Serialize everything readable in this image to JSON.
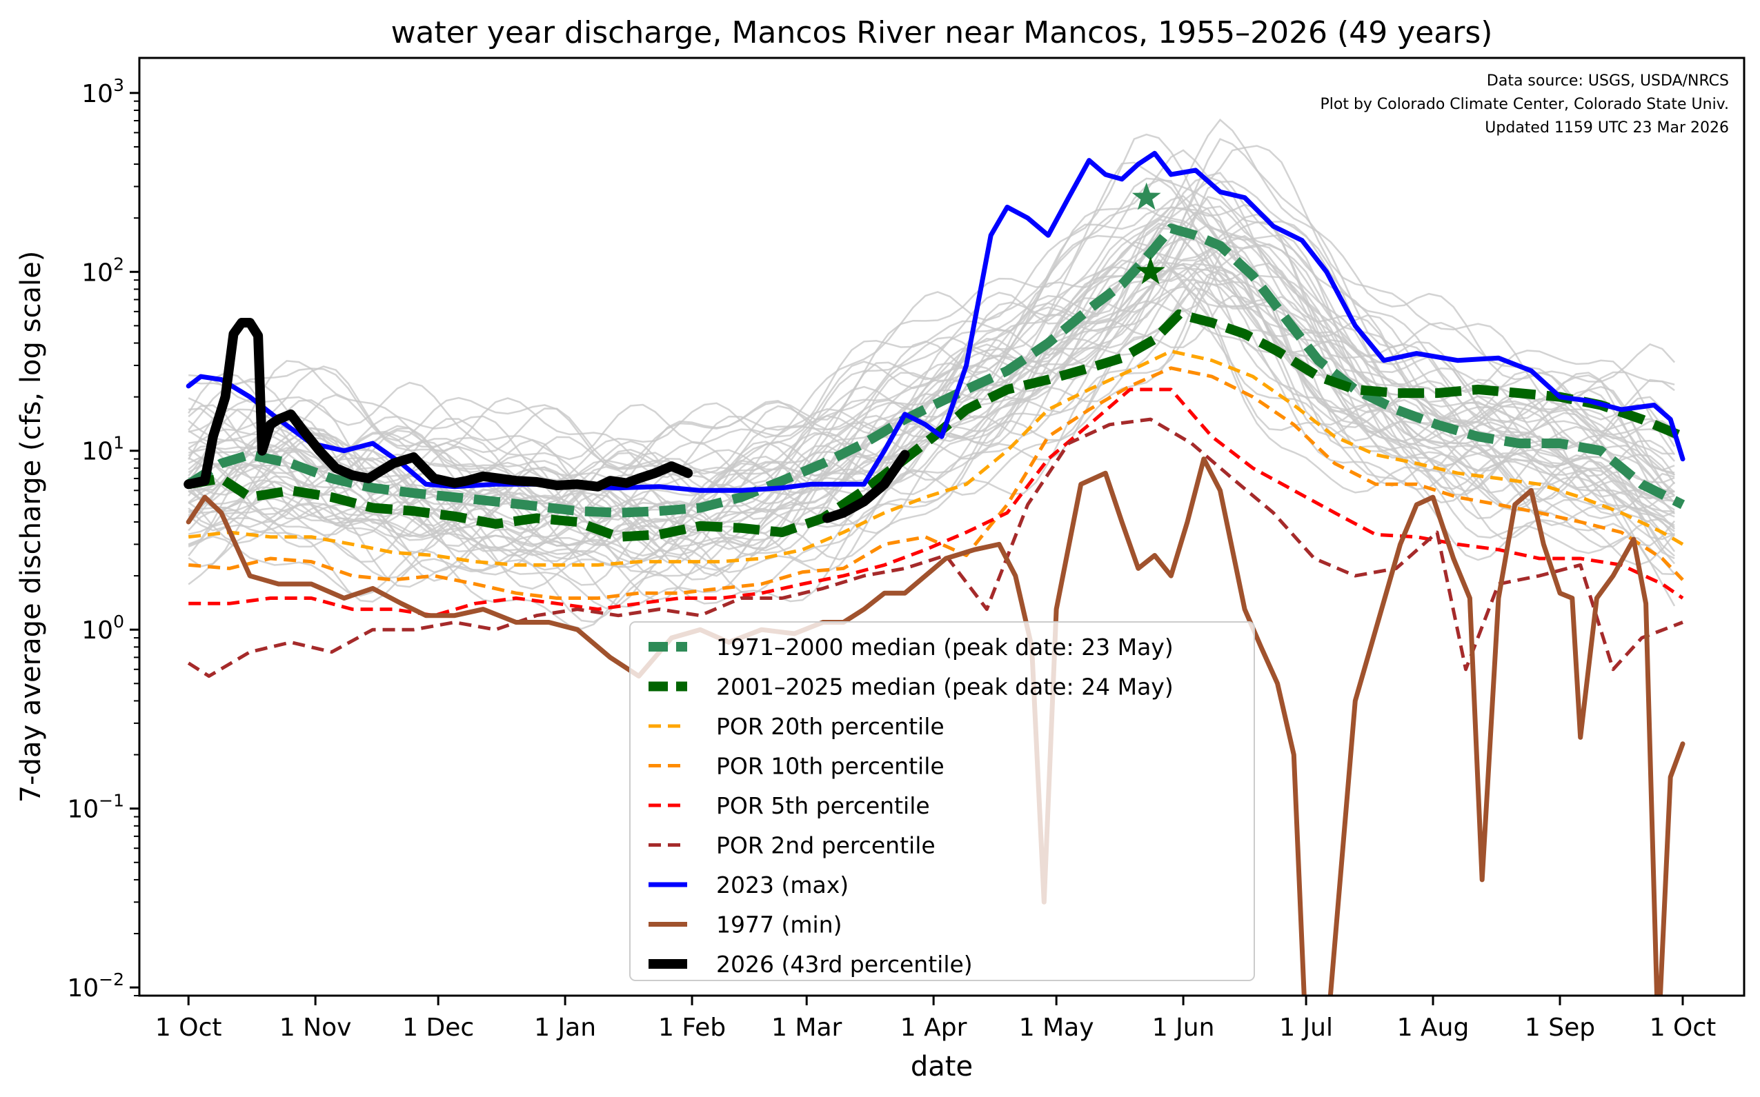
{
  "chart_data": {
    "type": "line",
    "title": "water year discharge, Mancos River near Mancos, 1955–2026 (49 years)",
    "xlabel": "date",
    "ylabel": "7-day average discharge (cfs, log scale)",
    "yscale": "log",
    "ylim": [
      0.009,
      1570
    ],
    "xlim_days": [
      -12,
      380
    ],
    "grid": false,
    "legend_position": "lower-center",
    "annotation": [
      "Data source: USGS, USDA/NRCS",
      "Plot by Colorado Climate Center, Colorado State Univ.",
      "Updated 1159 UTC 23 Mar 2026"
    ],
    "x_ticks": [
      {
        "day": 0,
        "label": "1 Oct"
      },
      {
        "day": 31,
        "label": "1 Nov"
      },
      {
        "day": 61,
        "label": "1 Dec"
      },
      {
        "day": 92,
        "label": "1 Jan"
      },
      {
        "day": 123,
        "label": "1 Feb"
      },
      {
        "day": 151,
        "label": "1 Mar"
      },
      {
        "day": 182,
        "label": "1 Apr"
      },
      {
        "day": 212,
        "label": "1 May"
      },
      {
        "day": 243,
        "label": "1 Jun"
      },
      {
        "day": 273,
        "label": "1 Jul"
      },
      {
        "day": 304,
        "label": "1 Aug"
      },
      {
        "day": 335,
        "label": "1 Sep"
      },
      {
        "day": 365,
        "label": "1 Oct"
      }
    ],
    "y_ticks": [
      {
        "value": 1000,
        "base": "10",
        "exp": "3"
      },
      {
        "value": 100,
        "base": "10",
        "exp": "2"
      },
      {
        "value": 10,
        "base": "10",
        "exp": "1"
      },
      {
        "value": 1,
        "base": "10",
        "exp": "0"
      },
      {
        "value": 0.1,
        "base": "10",
        "exp": "−1"
      },
      {
        "value": 0.01,
        "base": "10",
        "exp": "−2"
      }
    ],
    "series": [
      {
        "name": "1971–2000 median (peak date: 23 May)",
        "color": "#2e8b57",
        "style": "dashed-thick",
        "x": [
          0,
          8,
          15,
          25,
          35,
          45,
          55,
          65,
          75,
          85,
          95,
          105,
          115,
          125,
          135,
          145,
          155,
          165,
          175,
          182,
          190,
          200,
          210,
          220,
          228,
          234,
          240,
          246,
          252,
          260,
          268,
          276,
          285,
          295,
          305,
          315,
          325,
          335,
          345,
          355,
          365
        ],
        "values": [
          6.5,
          8.5,
          9.5,
          8.5,
          7.0,
          6.2,
          5.8,
          5.5,
          5.2,
          4.9,
          4.6,
          4.5,
          4.6,
          4.8,
          5.5,
          6.8,
          8.5,
          11,
          15,
          18,
          22,
          28,
          40,
          62,
          85,
          120,
          175,
          160,
          140,
          95,
          55,
          32,
          22,
          17,
          14,
          12,
          11,
          11,
          10,
          6.5,
          5.0
        ]
      },
      {
        "name": "2001–2025 median (peak date: 24 May)",
        "color": "#006400",
        "style": "dashed-thick",
        "x": [
          0,
          8,
          15,
          25,
          35,
          45,
          55,
          65,
          75,
          85,
          95,
          105,
          115,
          125,
          135,
          145,
          155,
          165,
          175,
          182,
          190,
          200,
          210,
          220,
          228,
          236,
          242,
          250,
          258,
          266,
          276,
          285,
          295,
          305,
          315,
          325,
          335,
          345,
          355,
          365
        ],
        "values": [
          6.5,
          7.0,
          5.5,
          6.0,
          5.5,
          4.8,
          4.6,
          4.3,
          3.9,
          4.2,
          4.0,
          3.3,
          3.4,
          3.8,
          3.7,
          3.5,
          4.2,
          6.0,
          9.0,
          12,
          17,
          22,
          25,
          29,
          33,
          42,
          58,
          52,
          45,
          36,
          26,
          22,
          21,
          21,
          22,
          21,
          20,
          18,
          15,
          12
        ]
      },
      {
        "name": "POR 20th percentile",
        "color": "#ffa500",
        "style": "dashed",
        "x": [
          0,
          10,
          20,
          30,
          40,
          50,
          60,
          70,
          80,
          90,
          100,
          110,
          120,
          130,
          140,
          150,
          160,
          170,
          180,
          190,
          200,
          210,
          220,
          230,
          240,
          250,
          260,
          270,
          280,
          290,
          300,
          310,
          320,
          330,
          340,
          350,
          360,
          365
        ],
        "values": [
          3.3,
          3.5,
          3.3,
          3.3,
          3.0,
          2.7,
          2.6,
          2.4,
          2.3,
          2.3,
          2.3,
          2.4,
          2.4,
          2.4,
          2.5,
          2.8,
          3.5,
          4.5,
          5.5,
          6.5,
          10,
          17,
          22,
          28,
          36,
          32,
          26,
          18,
          12,
          9.5,
          8.5,
          7.5,
          7.0,
          6.5,
          5.5,
          4.5,
          3.5,
          3.0
        ]
      },
      {
        "name": "POR 10th percentile",
        "color": "#ff8c00",
        "style": "dashed",
        "x": [
          0,
          10,
          20,
          30,
          40,
          50,
          60,
          70,
          80,
          90,
          100,
          110,
          120,
          130,
          140,
          150,
          160,
          170,
          180,
          190,
          200,
          210,
          220,
          230,
          240,
          250,
          260,
          270,
          280,
          290,
          300,
          310,
          320,
          330,
          340,
          350,
          360,
          365
        ],
        "values": [
          2.3,
          2.2,
          2.5,
          2.4,
          2.0,
          1.9,
          2.0,
          1.8,
          1.6,
          1.5,
          1.5,
          1.6,
          1.6,
          1.7,
          1.8,
          2.1,
          2.2,
          3.0,
          3.3,
          2.6,
          5.0,
          12,
          17,
          23,
          29,
          26,
          20,
          14,
          8.5,
          6.5,
          6.5,
          5.5,
          5.0,
          4.5,
          4.0,
          3.5,
          2.5,
          1.9
        ]
      },
      {
        "name": "POR 5th percentile",
        "color": "#ff0000",
        "style": "dashed",
        "x": [
          0,
          10,
          20,
          30,
          40,
          50,
          60,
          70,
          80,
          90,
          100,
          110,
          120,
          130,
          140,
          150,
          160,
          170,
          180,
          190,
          200,
          210,
          220,
          230,
          240,
          250,
          260,
          270,
          280,
          290,
          300,
          310,
          320,
          330,
          340,
          350,
          360,
          365
        ],
        "values": [
          1.4,
          1.4,
          1.5,
          1.5,
          1.3,
          1.3,
          1.2,
          1.4,
          1.5,
          1.4,
          1.3,
          1.4,
          1.5,
          1.5,
          1.6,
          1.8,
          2.0,
          2.3,
          2.8,
          3.5,
          4.5,
          9,
          14,
          22,
          22,
          12,
          8,
          6,
          4.5,
          3.4,
          3.3,
          3.0,
          2.8,
          2.5,
          2.5,
          2.3,
          1.8,
          1.5
        ]
      },
      {
        "name": "POR 2nd percentile",
        "color": "#a52a2a",
        "style": "dashed",
        "x": [
          0,
          5,
          15,
          25,
          35,
          45,
          55,
          65,
          75,
          85,
          95,
          105,
          115,
          125,
          135,
          145,
          155,
          165,
          175,
          185,
          195,
          205,
          215,
          225,
          235,
          245,
          255,
          265,
          275,
          285,
          295,
          305,
          312,
          320,
          330,
          340,
          348,
          355,
          365
        ],
        "values": [
          0.65,
          0.55,
          0.75,
          0.85,
          0.75,
          1.0,
          1.0,
          1.1,
          1.0,
          1.2,
          1.3,
          1.2,
          1.3,
          1.2,
          1.5,
          1.5,
          1.7,
          2.0,
          2.2,
          2.6,
          1.3,
          5,
          11,
          14,
          15,
          11,
          7,
          4.5,
          2.5,
          2.0,
          2.2,
          3.5,
          0.6,
          1.8,
          2.0,
          2.3,
          0.6,
          0.9,
          1.1
        ]
      },
      {
        "name": "2023 (max)",
        "color": "#0000ff",
        "style": "solid",
        "x": [
          0,
          3,
          8,
          15,
          22,
          30,
          38,
          45,
          52,
          58,
          65,
          75,
          85,
          95,
          105,
          115,
          125,
          135,
          145,
          152,
          158,
          165,
          170,
          175,
          180,
          184,
          190,
          196,
          200,
          205,
          210,
          215,
          220,
          224,
          228,
          232,
          236,
          240,
          246,
          252,
          258,
          265,
          272,
          278,
          285,
          292,
          300,
          310,
          320,
          328,
          335,
          342,
          350,
          358,
          362,
          365
        ],
        "values": [
          23,
          26,
          25,
          20,
          15,
          11,
          10,
          11,
          8.5,
          6.5,
          6.3,
          6.5,
          6.5,
          6.3,
          6.2,
          6.3,
          6.0,
          6.0,
          6.2,
          6.5,
          6.5,
          6.5,
          10,
          16,
          14,
          12,
          30,
          160,
          230,
          200,
          160,
          260,
          420,
          350,
          330,
          400,
          460,
          350,
          370,
          280,
          260,
          180,
          150,
          100,
          50,
          32,
          35,
          32,
          33,
          28,
          20,
          19,
          17,
          18,
          15,
          9
        ]
      },
      {
        "name": "1977 (min)",
        "color": "#a0522d",
        "style": "solid",
        "x": [
          0,
          4,
          8,
          15,
          22,
          30,
          38,
          45,
          52,
          58,
          65,
          72,
          80,
          88,
          95,
          103,
          110,
          118,
          125,
          132,
          140,
          148,
          155,
          160,
          165,
          170,
          175,
          180,
          185,
          192,
          198,
          202,
          206,
          209,
          212,
          218,
          224,
          228,
          232,
          236,
          240,
          244,
          248,
          252,
          258,
          262,
          266,
          270,
          273,
          278,
          285,
          290,
          296,
          300,
          304,
          309,
          313,
          316,
          320,
          324,
          328,
          331,
          335,
          338,
          340,
          344,
          348,
          353,
          356,
          359,
          362,
          365
        ],
        "values": [
          4.0,
          5.5,
          4.5,
          2.0,
          1.8,
          1.8,
          1.5,
          1.7,
          1.4,
          1.2,
          1.2,
          1.3,
          1.1,
          1.1,
          1.0,
          0.7,
          0.55,
          0.9,
          1.0,
          0.85,
          1.0,
          0.95,
          1.1,
          1.1,
          1.3,
          1.6,
          1.6,
          2.0,
          2.5,
          2.8,
          3.0,
          2.0,
          0.8,
          0.03,
          1.3,
          6.5,
          7.5,
          4.0,
          2.2,
          2.6,
          2.0,
          4.0,
          9.0,
          6.0,
          1.3,
          0.8,
          0.5,
          0.2,
          0.005,
          0.005,
          0.4,
          1.0,
          3.0,
          5.0,
          5.5,
          2.5,
          1.5,
          0.04,
          1.5,
          5.0,
          6.0,
          3.0,
          1.6,
          1.5,
          0.25,
          1.5,
          2.0,
          3.2,
          1.4,
          0.005,
          0.15,
          0.23
        ]
      },
      {
        "name": "2026 (43rd percentile)",
        "color": "#000000",
        "style": "solid-thick",
        "x": [
          0,
          4,
          6,
          9,
          11,
          13,
          15,
          17,
          18,
          20,
          22,
          25,
          28,
          32,
          36,
          40,
          44,
          50,
          55,
          60,
          65,
          68,
          72,
          76,
          80,
          85,
          90,
          95,
          100,
          103,
          107,
          110,
          114,
          118,
          122
        ],
        "values": [
          6.5,
          6.8,
          12,
          20,
          45,
          52,
          52,
          44,
          10,
          14,
          15,
          16,
          13,
          10,
          8,
          7.3,
          7.0,
          8.5,
          9.2,
          7.0,
          6.6,
          6.8,
          7.2,
          7.0,
          6.8,
          6.7,
          6.4,
          6.5,
          6.3,
          6.8,
          6.6,
          7.0,
          7.5,
          8.2,
          7.5
        ],
        "second_segment_x": [
          156,
          160,
          165,
          170,
          175
        ],
        "second_segment_values": [
          4.2,
          4.5,
          5.2,
          6.5,
          9.5
        ]
      }
    ],
    "peak_markers": [
      {
        "name": "1971–2000 median peak",
        "day": 234,
        "value": 260,
        "color": "#2e8b57",
        "marker": "star"
      },
      {
        "name": "2001–2025 median peak",
        "day": 235,
        "value": 100,
        "color": "#006400",
        "marker": "star"
      }
    ],
    "background_years": {
      "count": 49,
      "color": "#c8c8c8",
      "description": "individual water-year traces (light gray)"
    }
  }
}
